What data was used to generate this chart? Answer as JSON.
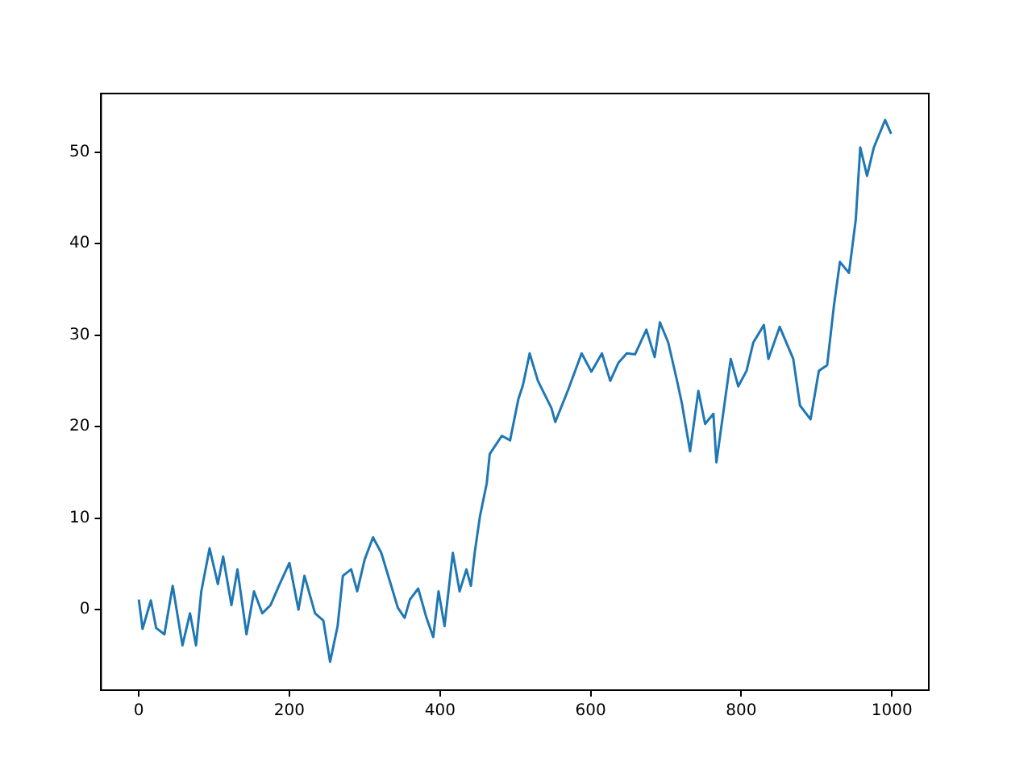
{
  "chart_data": {
    "type": "line",
    "xlim": [
      -50,
      1049
    ],
    "ylim": [
      -8.8,
      56.4
    ],
    "xticks": [
      0,
      200,
      400,
      600,
      800,
      1000
    ],
    "yticks": [
      0,
      10,
      20,
      30,
      40,
      50
    ],
    "grid": false,
    "legend": false,
    "marker": "none",
    "line_style": "solid",
    "x": [
      0,
      5,
      16,
      23,
      34,
      45,
      58,
      68,
      76,
      83,
      94,
      105,
      112,
      123,
      131,
      143,
      153,
      164,
      175,
      186,
      200,
      212,
      220,
      234,
      245,
      254,
      264,
      271,
      282,
      290,
      300,
      311,
      322,
      333,
      344,
      353,
      360,
      371,
      382,
      391,
      398,
      406,
      417,
      426,
      435,
      441,
      446,
      453,
      462,
      466,
      482,
      493,
      504,
      510,
      519,
      530,
      548,
      553,
      570,
      588,
      601,
      615,
      626,
      637,
      648,
      659,
      674,
      685,
      692,
      703,
      715,
      721,
      732,
      743,
      752,
      763,
      767,
      786,
      796,
      807,
      816,
      830,
      836,
      851,
      869,
      878,
      892,
      903,
      914,
      923,
      931,
      943,
      952,
      958,
      967,
      976,
      991,
      999
    ],
    "series": [
      {
        "color": "#1f77b4",
        "values": [
          1.1,
          -2.1,
          1,
          -2,
          -2.7,
          2.6,
          -3.9,
          -0.4,
          -3.9,
          2,
          6.7,
          2.8,
          5.8,
          0.5,
          4.4,
          -2.7,
          2,
          -0.4,
          0.5,
          2.6,
          5.1,
          0,
          3.7,
          -0.4,
          -1.2,
          -5.7,
          -1.8,
          3.7,
          4.4,
          2,
          5.5,
          7.9,
          6.2,
          3.2,
          0.2,
          -0.9,
          1.1,
          2.3,
          -0.9,
          -3,
          2,
          -1.8,
          6.2,
          2,
          4.4,
          2.6,
          6.2,
          10.2,
          13.8,
          17,
          19,
          18.5,
          23,
          24.5,
          28,
          25,
          22,
          20.5,
          24,
          28,
          26,
          28,
          25,
          27,
          28,
          27.9,
          30.6,
          27.6,
          31.4,
          29.2,
          24.9,
          22.6,
          17.3,
          23.9,
          20.3,
          21.4,
          16.1,
          27.4,
          24.4,
          26.1,
          29.2,
          31.1,
          27.4,
          30.9,
          27.4,
          22.3,
          20.8,
          26.1,
          26.7,
          33.2,
          38,
          36.8,
          42.6,
          50.5,
          47.4,
          50.5,
          53.5,
          52
        ]
      }
    ]
  }
}
